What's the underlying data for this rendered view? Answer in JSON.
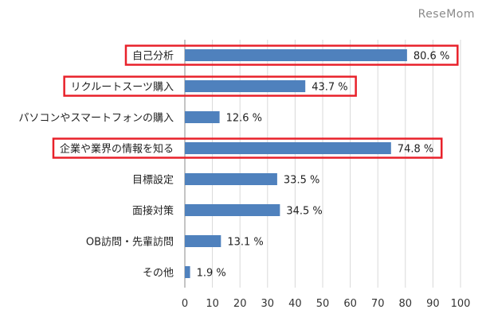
{
  "watermark": "ReseMom",
  "chart_data": {
    "type": "bar",
    "orientation": "horizontal",
    "categories": [
      "自己分析",
      "リクルートスーツ購入",
      "パソコンやスマートフォンの購入",
      "企業や業界の情報を知る",
      "目標設定",
      "面接対策",
      "OB訪問・先輩訪問",
      "その他"
    ],
    "values": [
      80.6,
      43.7,
      12.6,
      74.8,
      33.5,
      34.5,
      13.1,
      1.9
    ],
    "value_labels": [
      "80.6 %",
      "43.7 %",
      "12.6 %",
      "74.8 %",
      "33.5 %",
      "34.5 %",
      "13.1 %",
      "1.9 %"
    ],
    "highlighted_categories": [
      "自己分析",
      "リクルートスーツ購入",
      "企業や業界の情報を知る"
    ],
    "xlim": [
      0,
      100
    ],
    "x_ticks": [
      0,
      10,
      20,
      30,
      40,
      50,
      60,
      70,
      80,
      90,
      100
    ],
    "grid": "vertical",
    "title": "",
    "xlabel": "",
    "ylabel": "",
    "colors": {
      "bar": "#4f81bd",
      "highlight": "#e8212a",
      "grid": "#d9d9d9"
    }
  }
}
